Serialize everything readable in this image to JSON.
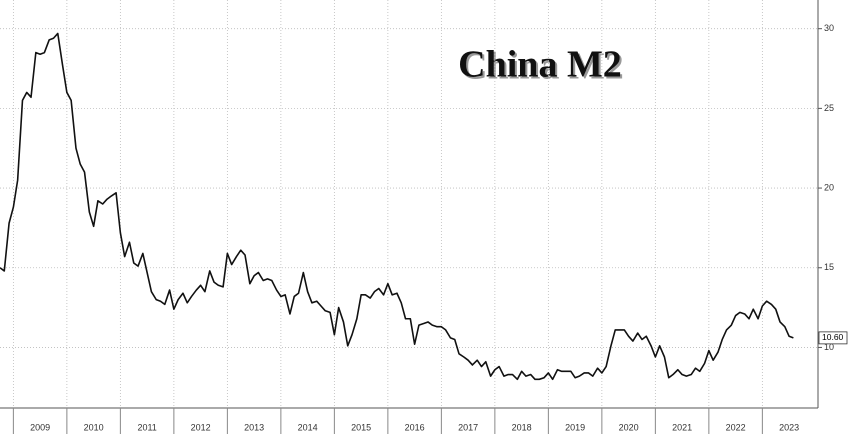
{
  "chart_data": {
    "type": "line",
    "title": "China M2",
    "x": [
      2008.75,
      2008.83,
      2008.92,
      2009,
      2009.08,
      2009.17,
      2009.25,
      2009.33,
      2009.42,
      2009.5,
      2009.58,
      2009.67,
      2009.75,
      2009.83,
      2009.92,
      2010,
      2010.08,
      2010.17,
      2010.25,
      2010.33,
      2010.42,
      2010.5,
      2010.58,
      2010.67,
      2010.75,
      2010.83,
      2010.92,
      2011,
      2011.08,
      2011.17,
      2011.25,
      2011.33,
      2011.42,
      2011.5,
      2011.58,
      2011.67,
      2011.75,
      2011.83,
      2011.92,
      2012,
      2012.08,
      2012.17,
      2012.25,
      2012.33,
      2012.42,
      2012.5,
      2012.58,
      2012.67,
      2012.75,
      2012.83,
      2012.92,
      2013,
      2013.08,
      2013.17,
      2013.25,
      2013.33,
      2013.42,
      2013.5,
      2013.58,
      2013.67,
      2013.75,
      2013.83,
      2013.92,
      2014,
      2014.08,
      2014.17,
      2014.25,
      2014.33,
      2014.42,
      2014.5,
      2014.58,
      2014.67,
      2014.75,
      2014.83,
      2014.92,
      2015,
      2015.08,
      2015.17,
      2015.25,
      2015.33,
      2015.42,
      2015.5,
      2015.58,
      2015.67,
      2015.75,
      2015.83,
      2015.92,
      2016,
      2016.08,
      2016.17,
      2016.25,
      2016.33,
      2016.42,
      2016.5,
      2016.58,
      2016.67,
      2016.75,
      2016.83,
      2016.92,
      2017,
      2017.08,
      2017.17,
      2017.25,
      2017.33,
      2017.42,
      2017.5,
      2017.58,
      2017.67,
      2017.75,
      2017.83,
      2017.92,
      2018,
      2018.08,
      2018.17,
      2018.25,
      2018.33,
      2018.42,
      2018.5,
      2018.58,
      2018.67,
      2018.75,
      2018.83,
      2018.92,
      2019,
      2019.08,
      2019.17,
      2019.25,
      2019.33,
      2019.42,
      2019.5,
      2019.58,
      2019.67,
      2019.75,
      2019.83,
      2019.92,
      2020,
      2020.08,
      2020.17,
      2020.25,
      2020.33,
      2020.42,
      2020.5,
      2020.58,
      2020.67,
      2020.75,
      2020.83,
      2020.92,
      2021,
      2021.08,
      2021.17,
      2021.25,
      2021.33,
      2021.42,
      2021.5,
      2021.58,
      2021.67,
      2021.75,
      2021.83,
      2021.92,
      2022,
      2022.08,
      2022.17,
      2022.25,
      2022.33,
      2022.42,
      2022.5,
      2022.58,
      2022.67,
      2022.75,
      2022.83,
      2022.92,
      2023,
      2023.08,
      2023.17,
      2023.25,
      2023.33,
      2023.42,
      2023.5,
      2023.58
    ],
    "series": [
      {
        "color": "#111111",
        "values": [
          15.0,
          14.8,
          17.8,
          18.8,
          20.5,
          25.5,
          26.0,
          25.7,
          28.5,
          28.4,
          28.5,
          29.3,
          29.4,
          29.7,
          27.7,
          26.0,
          25.5,
          22.5,
          21.5,
          21.0,
          18.5,
          17.6,
          19.2,
          19.0,
          19.3,
          19.5,
          19.7,
          17.2,
          15.7,
          16.6,
          15.3,
          15.1,
          15.9,
          14.7,
          13.5,
          13.0,
          12.9,
          12.7,
          13.6,
          12.4,
          13.0,
          13.4,
          12.8,
          13.2,
          13.6,
          13.9,
          13.5,
          14.8,
          14.1,
          13.9,
          13.8,
          15.9,
          15.2,
          15.7,
          16.1,
          15.8,
          14.0,
          14.5,
          14.7,
          14.2,
          14.3,
          14.2,
          13.6,
          13.2,
          13.3,
          12.1,
          13.2,
          13.4,
          14.7,
          13.5,
          12.8,
          12.9,
          12.6,
          12.3,
          12.2,
          10.8,
          12.5,
          11.6,
          10.1,
          10.8,
          11.8,
          13.3,
          13.3,
          13.1,
          13.5,
          13.7,
          13.3,
          14.0,
          13.3,
          13.4,
          12.8,
          11.8,
          11.8,
          10.2,
          11.4,
          11.5,
          11.6,
          11.4,
          11.3,
          11.3,
          11.1,
          10.6,
          10.5,
          9.6,
          9.4,
          9.2,
          8.9,
          9.2,
          8.8,
          9.1,
          8.2,
          8.6,
          8.8,
          8.2,
          8.3,
          8.3,
          8.0,
          8.5,
          8.2,
          8.3,
          8.0,
          8.0,
          8.1,
          8.4,
          8.0,
          8.6,
          8.5,
          8.5,
          8.5,
          8.1,
          8.2,
          8.4,
          8.4,
          8.2,
          8.7,
          8.4,
          8.8,
          10.1,
          11.1,
          11.1,
          11.1,
          10.7,
          10.4,
          10.9,
          10.5,
          10.7,
          10.1,
          9.4,
          10.1,
          9.4,
          8.1,
          8.3,
          8.6,
          8.3,
          8.2,
          8.3,
          8.7,
          8.5,
          9.0,
          9.8,
          9.2,
          9.7,
          10.5,
          11.1,
          11.4,
          12.0,
          12.2,
          12.1,
          11.8,
          12.4,
          11.8,
          12.6,
          12.9,
          12.7,
          12.4,
          11.6,
          11.3,
          10.7,
          10.6
        ]
      }
    ],
    "annotations": [
      {
        "value": 10.6,
        "label": "10.60"
      }
    ],
    "xlim": [
      2008.75,
      2024.04
    ],
    "xticks": [
      2009,
      2010,
      2011,
      2012,
      2013,
      2014,
      2015,
      2016,
      2017,
      2018,
      2019,
      2020,
      2021,
      2022,
      2023
    ],
    "ylim": [
      6.2,
      31.8
    ],
    "yticks": [
      10,
      15,
      20,
      25,
      30
    ],
    "grid": true
  }
}
